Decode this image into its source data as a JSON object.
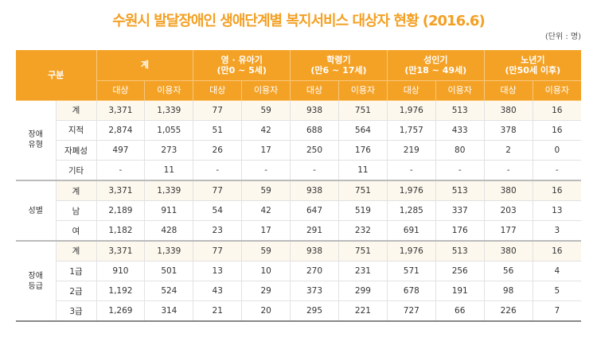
{
  "title": "수원시 발달장애인 생애단계별 복지서비스 대상자 현황 (2016.6)",
  "unit": "(단위 : 명)",
  "header": {
    "category": "구분",
    "groups": [
      {
        "label": "계",
        "sub": ""
      },
      {
        "label": "영 · 유아기",
        "sub": "(만0 ~ 5세)"
      },
      {
        "label": "학령기",
        "sub": "(만6 ~ 17세)"
      },
      {
        "label": "성인기",
        "sub": "(만18 ~ 49세)"
      },
      {
        "label": "노년기",
        "sub": "(만50세 이후)"
      }
    ],
    "sub_cols": [
      "대상",
      "이용자"
    ]
  },
  "sections": [
    {
      "label": "장애\n유형",
      "rows": [
        {
          "label": "계",
          "values": [
            "3,371",
            "1,339",
            "77",
            "59",
            "938",
            "751",
            "1,976",
            "513",
            "380",
            "16"
          ]
        },
        {
          "label": "지적",
          "values": [
            "2,874",
            "1,055",
            "51",
            "42",
            "688",
            "564",
            "1,757",
            "433",
            "378",
            "16"
          ]
        },
        {
          "label": "자폐성",
          "values": [
            "497",
            "273",
            "26",
            "17",
            "250",
            "176",
            "219",
            "80",
            "2",
            "0"
          ]
        },
        {
          "label": "기타",
          "values": [
            "-",
            "11",
            "-",
            "-",
            "-",
            "11",
            "-",
            "-",
            "-",
            "-"
          ]
        }
      ]
    },
    {
      "label": "성별",
      "rows": [
        {
          "label": "계",
          "values": [
            "3,371",
            "1,339",
            "77",
            "59",
            "938",
            "751",
            "1,976",
            "513",
            "380",
            "16"
          ]
        },
        {
          "label": "남",
          "values": [
            "2,189",
            "911",
            "54",
            "42",
            "647",
            "519",
            "1,285",
            "337",
            "203",
            "13"
          ]
        },
        {
          "label": "여",
          "values": [
            "1,182",
            "428",
            "23",
            "17",
            "291",
            "232",
            "691",
            "176",
            "177",
            "3"
          ]
        }
      ]
    },
    {
      "label": "장애\n등급",
      "rows": [
        {
          "label": "계",
          "values": [
            "3,371",
            "1,339",
            "77",
            "59",
            "938",
            "751",
            "1,976",
            "513",
            "380",
            "16"
          ]
        },
        {
          "label": "1급",
          "values": [
            "910",
            "501",
            "13",
            "10",
            "270",
            "231",
            "571",
            "256",
            "56",
            "4"
          ]
        },
        {
          "label": "2급",
          "values": [
            "1,192",
            "524",
            "43",
            "29",
            "373",
            "299",
            "678",
            "191",
            "98",
            "5"
          ]
        },
        {
          "label": "3급",
          "values": [
            "1,269",
            "314",
            "21",
            "20",
            "295",
            "221",
            "727",
            "66",
            "226",
            "7"
          ]
        }
      ]
    }
  ],
  "colors": {
    "accent": "#f4a226",
    "total_row": "#fdf8ee"
  }
}
